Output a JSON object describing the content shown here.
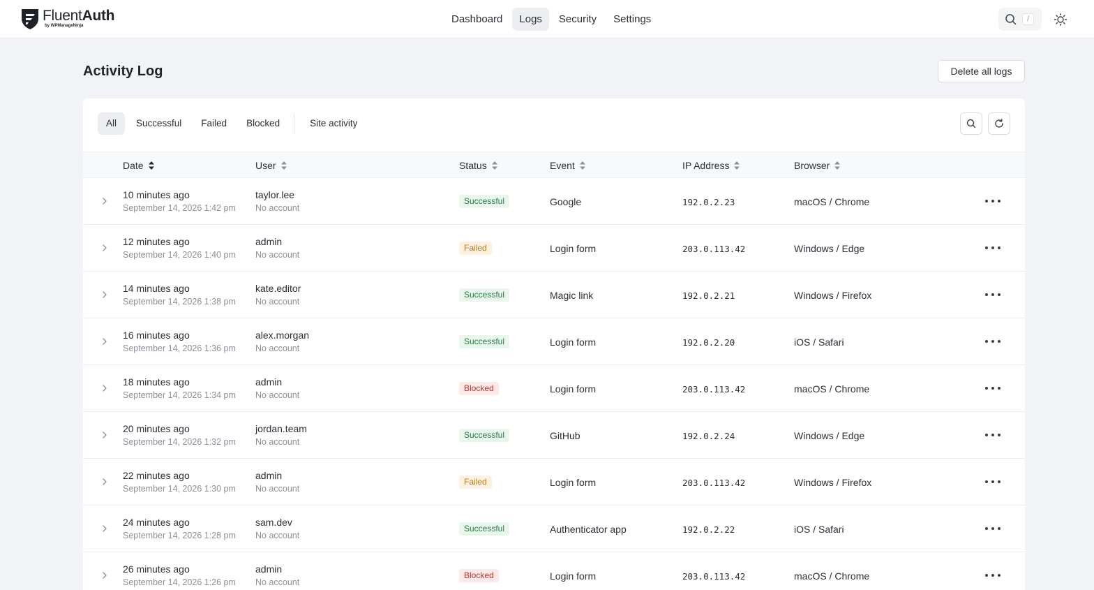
{
  "brand": {
    "name_light": "Fluent",
    "name_bold": "Auth",
    "sub": "by WPManageNinja"
  },
  "nav": {
    "items": [
      {
        "label": "Dashboard",
        "active": false
      },
      {
        "label": "Logs",
        "active": true
      },
      {
        "label": "Security",
        "active": false
      },
      {
        "label": "Settings",
        "active": false
      }
    ],
    "search_shortcut": "/"
  },
  "page": {
    "title": "Activity Log",
    "delete_label": "Delete all logs"
  },
  "tabs": [
    {
      "label": "All",
      "active": true
    },
    {
      "label": "Successful",
      "active": false
    },
    {
      "label": "Failed",
      "active": false
    },
    {
      "label": "Blocked",
      "active": false
    },
    {
      "label": "Site activity",
      "active": false
    }
  ],
  "columns": [
    "Date",
    "User",
    "Status",
    "Event",
    "IP Address",
    "Browser"
  ],
  "rows": [
    {
      "relative": "10 minutes ago",
      "datetime": "September 14, 2026 1:42 pm",
      "user": "taylor.lee",
      "account": "No account",
      "status": "Successful",
      "event": "Google",
      "ip": "192.0.2.23",
      "browser": "macOS / Chrome"
    },
    {
      "relative": "12 minutes ago",
      "datetime": "September 14, 2026 1:40 pm",
      "user": "admin",
      "account": "No account",
      "status": "Failed",
      "event": "Login form",
      "ip": "203.0.113.42",
      "browser": "Windows / Edge"
    },
    {
      "relative": "14 minutes ago",
      "datetime": "September 14, 2026 1:38 pm",
      "user": "kate.editor",
      "account": "No account",
      "status": "Successful",
      "event": "Magic link",
      "ip": "192.0.2.21",
      "browser": "Windows / Firefox"
    },
    {
      "relative": "16 minutes ago",
      "datetime": "September 14, 2026 1:36 pm",
      "user": "alex.morgan",
      "account": "No account",
      "status": "Successful",
      "event": "Login form",
      "ip": "192.0.2.20",
      "browser": "iOS / Safari"
    },
    {
      "relative": "18 minutes ago",
      "datetime": "September 14, 2026 1:34 pm",
      "user": "admin",
      "account": "No account",
      "status": "Blocked",
      "event": "Login form",
      "ip": "203.0.113.42",
      "browser": "macOS / Chrome"
    },
    {
      "relative": "20 minutes ago",
      "datetime": "September 14, 2026 1:32 pm",
      "user": "jordan.team",
      "account": "No account",
      "status": "Successful",
      "event": "GitHub",
      "ip": "192.0.2.24",
      "browser": "Windows / Edge"
    },
    {
      "relative": "22 minutes ago",
      "datetime": "September 14, 2026 1:30 pm",
      "user": "admin",
      "account": "No account",
      "status": "Failed",
      "event": "Login form",
      "ip": "203.0.113.42",
      "browser": "Windows / Firefox"
    },
    {
      "relative": "24 minutes ago",
      "datetime": "September 14, 2026 1:28 pm",
      "user": "sam.dev",
      "account": "No account",
      "status": "Successful",
      "event": "Authenticator app",
      "ip": "192.0.2.22",
      "browser": "iOS / Safari"
    },
    {
      "relative": "26 minutes ago",
      "datetime": "September 14, 2026 1:26 pm",
      "user": "admin",
      "account": "No account",
      "status": "Blocked",
      "event": "Login form",
      "ip": "203.0.113.42",
      "browser": "macOS / Chrome"
    }
  ]
}
